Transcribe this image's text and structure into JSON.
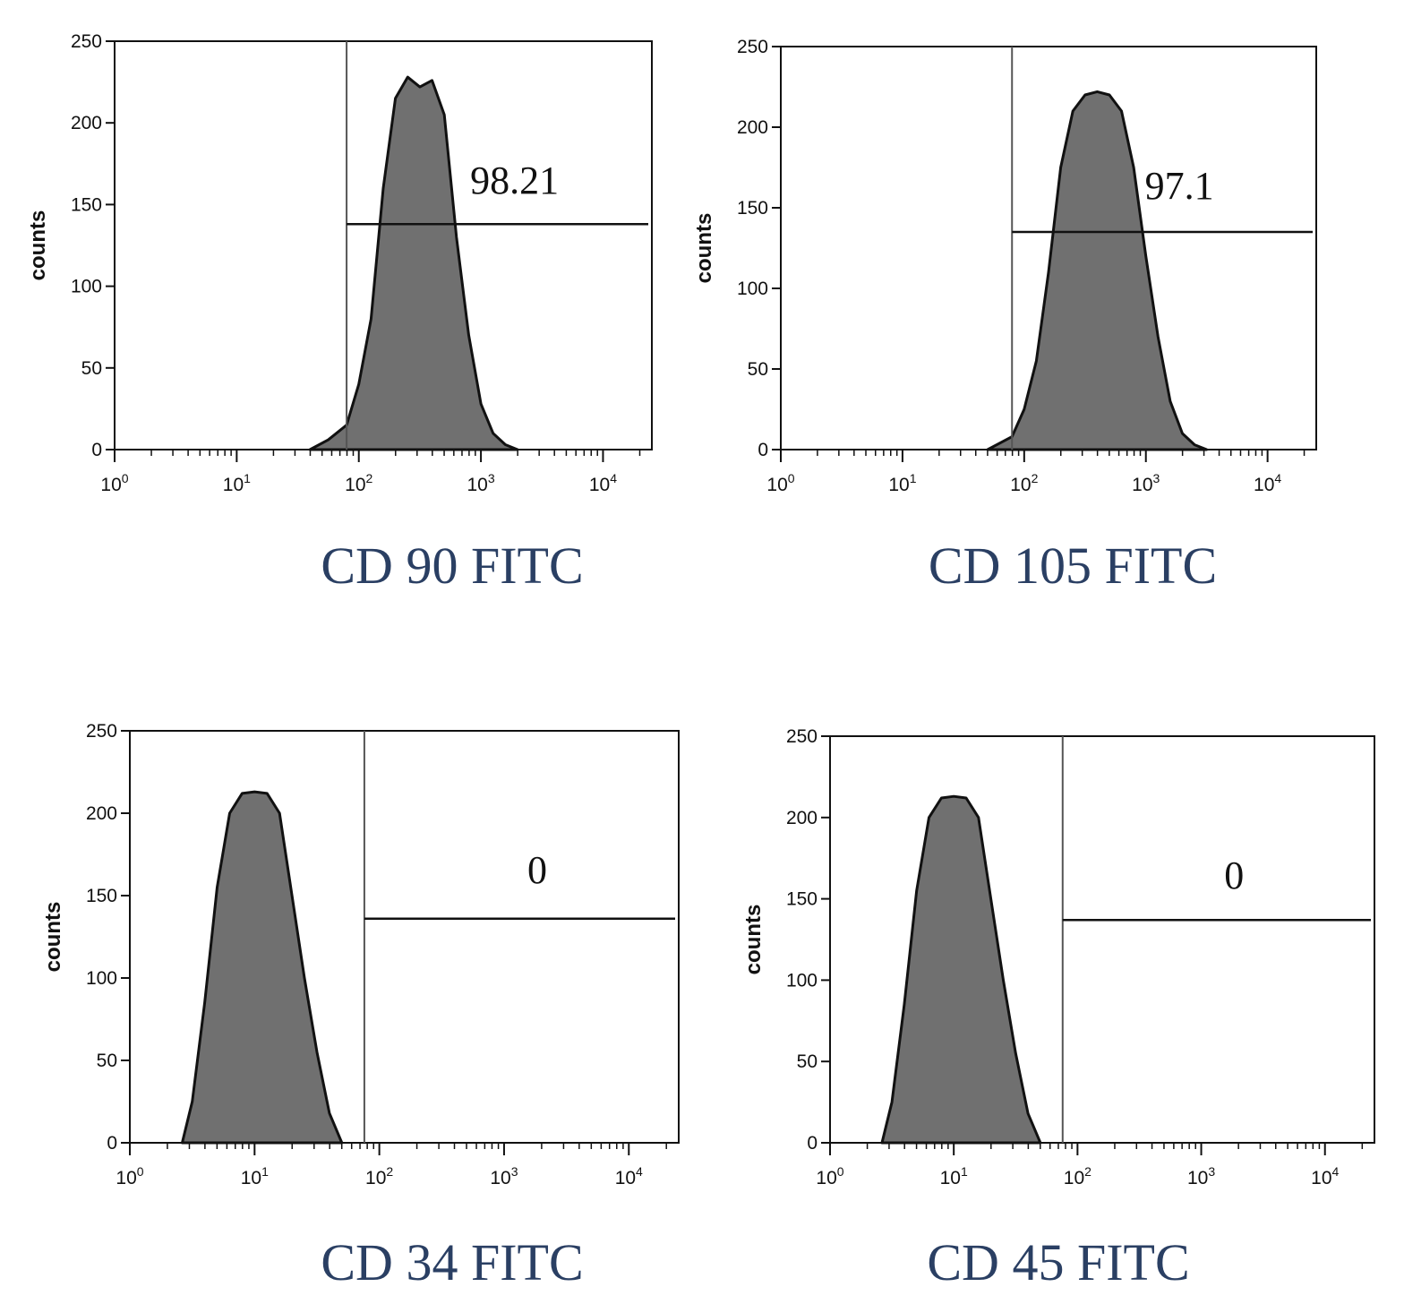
{
  "colors": {
    "histogram_fill": "#707070",
    "histogram_outline": "#111111",
    "axis": "#111111",
    "caption": "#2a3f63"
  },
  "chart_data": [
    {
      "type": "area",
      "title": "CD 90 FITC",
      "ylabel": "counts",
      "xlabel": "",
      "x_scale": "log10",
      "xlim_log10": [
        0,
        4.4
      ],
      "ylim": [
        0,
        250
      ],
      "yticks": [
        "0",
        "50",
        "100",
        "150",
        "200",
        "250"
      ],
      "xticks": [
        {
          "base": "10",
          "exp": "0"
        },
        {
          "base": "10",
          "exp": "1"
        },
        {
          "base": "10",
          "exp": "2"
        },
        {
          "base": "10",
          "exp": "3"
        },
        {
          "base": "10",
          "exp": "4"
        }
      ],
      "gate": {
        "start_log10": 1.9,
        "level": 138,
        "percent_label": "98.21"
      },
      "series": [
        {
          "name": "CD 90 FITC",
          "log10_x": [
            1.6,
            1.75,
            1.9,
            2.0,
            2.1,
            2.2,
            2.3,
            2.4,
            2.5,
            2.6,
            2.7,
            2.8,
            2.9,
            3.0,
            3.1,
            3.2,
            3.3
          ],
          "counts": [
            0,
            6,
            15,
            40,
            80,
            160,
            215,
            228,
            222,
            226,
            205,
            130,
            70,
            28,
            10,
            3,
            0
          ]
        }
      ]
    },
    {
      "type": "area",
      "title": "CD 105 FITC",
      "ylabel": "counts",
      "xlabel": "",
      "x_scale": "log10",
      "xlim_log10": [
        0,
        4.4
      ],
      "ylim": [
        0,
        250
      ],
      "yticks": [
        "0",
        "50",
        "100",
        "150",
        "200",
        "250"
      ],
      "xticks": [
        {
          "base": "10",
          "exp": "0"
        },
        {
          "base": "10",
          "exp": "1"
        },
        {
          "base": "10",
          "exp": "2"
        },
        {
          "base": "10",
          "exp": "3"
        },
        {
          "base": "10",
          "exp": "4"
        }
      ],
      "gate": {
        "start_log10": 1.9,
        "level": 135,
        "percent_label": "97.1"
      },
      "series": [
        {
          "name": "CD 105 FITC",
          "log10_x": [
            1.7,
            1.9,
            2.0,
            2.1,
            2.2,
            2.3,
            2.4,
            2.5,
            2.6,
            2.7,
            2.8,
            2.9,
            3.0,
            3.1,
            3.2,
            3.3,
            3.4,
            3.5
          ],
          "counts": [
            0,
            8,
            25,
            55,
            110,
            175,
            210,
            220,
            222,
            220,
            210,
            175,
            120,
            70,
            30,
            10,
            3,
            0
          ]
        }
      ]
    },
    {
      "type": "area",
      "title": "CD 34 FITC",
      "ylabel": "counts",
      "xlabel": "",
      "x_scale": "log10",
      "xlim_log10": [
        0,
        4.4
      ],
      "ylim": [
        0,
        250
      ],
      "yticks": [
        "0",
        "50",
        "100",
        "150",
        "200",
        "250"
      ],
      "xticks": [
        {
          "base": "10",
          "exp": "0"
        },
        {
          "base": "10",
          "exp": "1"
        },
        {
          "base": "10",
          "exp": "2"
        },
        {
          "base": "10",
          "exp": "3"
        },
        {
          "base": "10",
          "exp": "4"
        }
      ],
      "gate": {
        "start_log10": 1.88,
        "level": 136,
        "percent_label": "0"
      },
      "series": [
        {
          "name": "CD 34 FITC",
          "log10_x": [
            0.42,
            0.5,
            0.6,
            0.7,
            0.8,
            0.9,
            1.0,
            1.1,
            1.2,
            1.3,
            1.4,
            1.5,
            1.6,
            1.7
          ],
          "counts": [
            0,
            25,
            85,
            155,
            200,
            212,
            213,
            212,
            200,
            150,
            100,
            55,
            18,
            0
          ]
        }
      ]
    },
    {
      "type": "area",
      "title": "CD 45 FITC",
      "ylabel": "counts",
      "xlabel": "",
      "x_scale": "log10",
      "xlim_log10": [
        0,
        4.4
      ],
      "ylim": [
        0,
        250
      ],
      "yticks": [
        "0",
        "50",
        "100",
        "150",
        "200",
        "250"
      ],
      "xticks": [
        {
          "base": "10",
          "exp": "0"
        },
        {
          "base": "10",
          "exp": "1"
        },
        {
          "base": "10",
          "exp": "2"
        },
        {
          "base": "10",
          "exp": "3"
        },
        {
          "base": "10",
          "exp": "4"
        }
      ],
      "gate": {
        "start_log10": 1.88,
        "level": 137,
        "percent_label": "0"
      },
      "series": [
        {
          "name": "CD 45 FITC",
          "log10_x": [
            0.42,
            0.5,
            0.6,
            0.7,
            0.8,
            0.9,
            1.0,
            1.1,
            1.2,
            1.3,
            1.4,
            1.5,
            1.6,
            1.7
          ],
          "counts": [
            0,
            25,
            85,
            155,
            200,
            212,
            213,
            212,
            200,
            150,
            100,
            55,
            18,
            0
          ]
        }
      ]
    }
  ]
}
